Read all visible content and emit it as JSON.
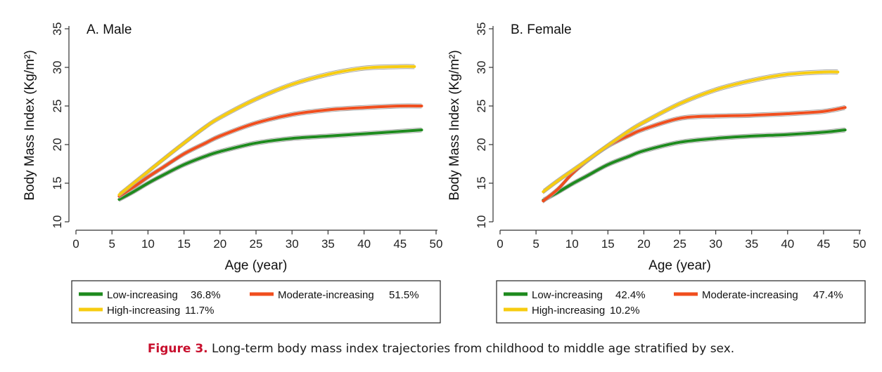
{
  "caption": {
    "label": "Figure 3.",
    "text": " Long-term body mass index trajectories from childhood to middle age stratified by sex."
  },
  "colors": {
    "low": "#1e8a1e",
    "moderate": "#f04e1e",
    "high": "#f7cc10",
    "ci": "#a8a8a8",
    "axis": "#333333"
  },
  "chart_data": [
    {
      "type": "line",
      "title": "A. Male",
      "xlabel": "Age (year)",
      "ylabel": "Body Mass Index  (Kg/m²)",
      "xlim": [
        0,
        50
      ],
      "ylim": [
        10,
        35
      ],
      "xticks": [
        "0",
        "5",
        "10",
        "15",
        "20",
        "25",
        "30",
        "35",
        "40",
        "45",
        "50"
      ],
      "yticks": [
        "10",
        "15",
        "20",
        "25",
        "30",
        "35"
      ],
      "legend": "bottom",
      "series": [
        {
          "name": "Low-increasing",
          "share": "36.8%",
          "key": "low",
          "x": [
            6,
            8,
            10,
            12,
            15,
            18,
            20,
            25,
            30,
            35,
            40,
            45,
            48
          ],
          "y": [
            12.9,
            13.9,
            15.0,
            16.0,
            17.4,
            18.5,
            19.1,
            20.2,
            20.8,
            21.1,
            21.4,
            21.7,
            21.9
          ]
        },
        {
          "name": "Moderate-increasing",
          "share": "51.5%",
          "key": "moderate",
          "x": [
            6,
            8,
            10,
            12,
            15,
            18,
            20,
            25,
            30,
            35,
            40,
            45,
            48
          ],
          "y": [
            13.3,
            14.5,
            15.8,
            17.0,
            18.8,
            20.2,
            21.1,
            22.8,
            23.9,
            24.5,
            24.8,
            25.0,
            25.0
          ]
        },
        {
          "name": "High-increasing",
          "share": "11.7%",
          "key": "high",
          "x": [
            6,
            8,
            10,
            12,
            15,
            18,
            20,
            25,
            30,
            35,
            40,
            45,
            47
          ],
          "y": [
            13.5,
            15.0,
            16.5,
            18.0,
            20.2,
            22.3,
            23.5,
            25.9,
            27.8,
            29.1,
            29.9,
            30.1,
            30.1
          ]
        }
      ]
    },
    {
      "type": "line",
      "title": "B. Female",
      "xlabel": "Age (year)",
      "ylabel": "Body Mass Index  (Kg/m²)",
      "xlim": [
        0,
        50
      ],
      "ylim": [
        10,
        35
      ],
      "xticks": [
        "0",
        "5",
        "10",
        "15",
        "20",
        "25",
        "30",
        "35",
        "40",
        "45",
        "50"
      ],
      "yticks": [
        "10",
        "15",
        "20",
        "25",
        "30",
        "35"
      ],
      "legend": "bottom",
      "series": [
        {
          "name": "Low-increasing",
          "share": "42.4%",
          "key": "low",
          "x": [
            6,
            8,
            10,
            12,
            15,
            18,
            20,
            25,
            30,
            35,
            40,
            45,
            48
          ],
          "y": [
            12.8,
            13.8,
            14.9,
            15.9,
            17.4,
            18.5,
            19.2,
            20.3,
            20.8,
            21.1,
            21.3,
            21.6,
            21.9
          ]
        },
        {
          "name": "Moderate-increasing",
          "share": "47.4%",
          "key": "moderate",
          "x": [
            6,
            8,
            10,
            12,
            15,
            18,
            20,
            25,
            30,
            35,
            40,
            45,
            48
          ],
          "y": [
            12.7,
            14.2,
            16.2,
            17.8,
            19.8,
            21.2,
            22.0,
            23.4,
            23.7,
            23.8,
            24.0,
            24.3,
            24.8
          ]
        },
        {
          "name": "High-increasing",
          "share": "10.2%",
          "key": "high",
          "x": [
            6,
            8,
            10,
            12,
            15,
            18,
            20,
            25,
            30,
            35,
            40,
            45,
            47
          ],
          "y": [
            13.9,
            15.3,
            16.6,
            17.9,
            19.9,
            21.8,
            22.9,
            25.3,
            27.1,
            28.3,
            29.1,
            29.4,
            29.4
          ]
        }
      ]
    }
  ]
}
